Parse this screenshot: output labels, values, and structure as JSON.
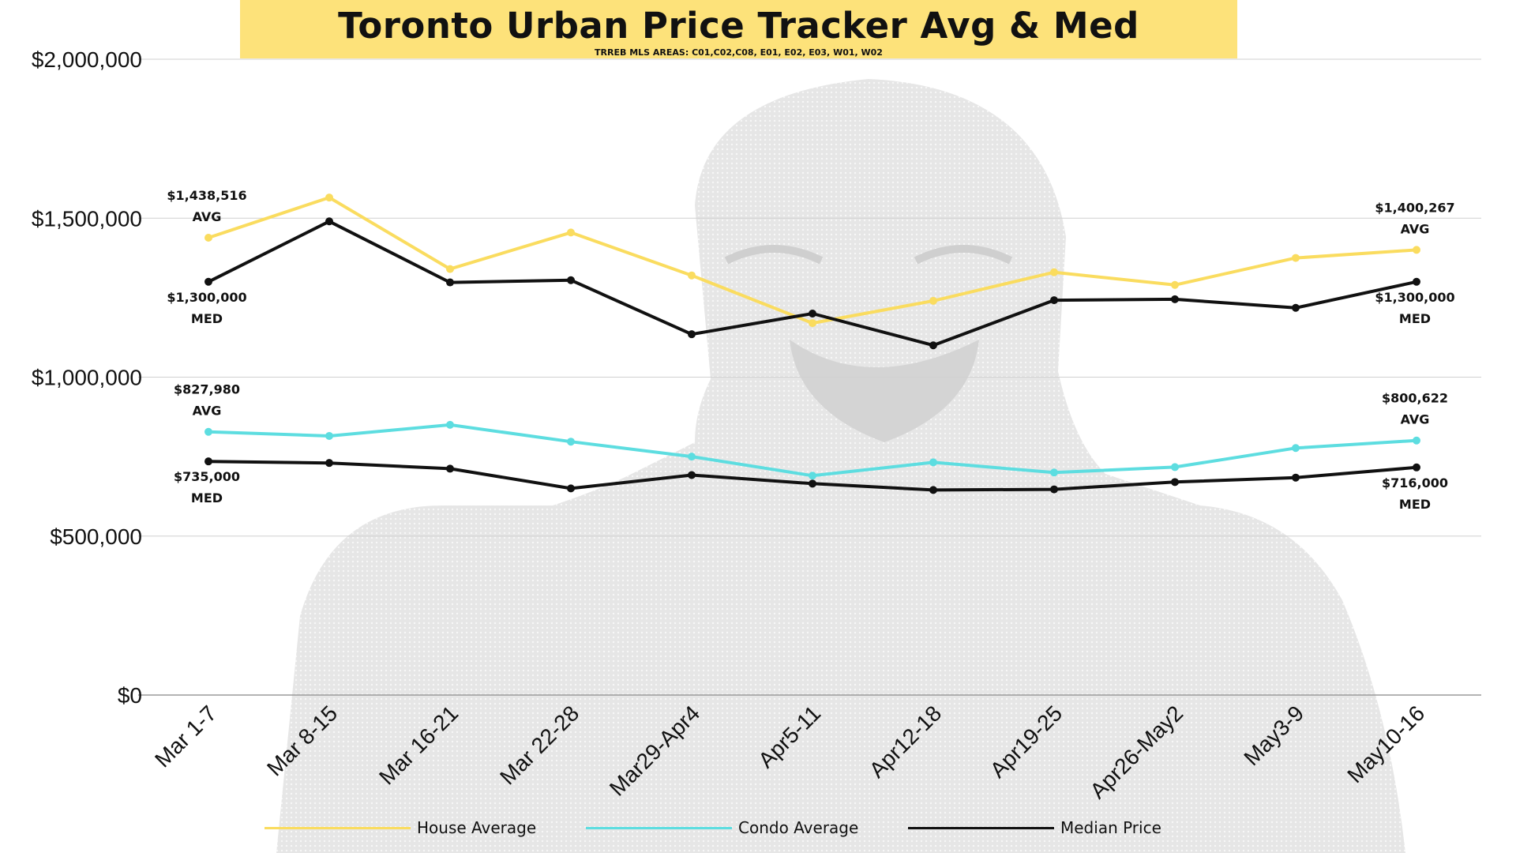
{
  "title": "Toronto Urban Price Tracker Avg & Med",
  "subtitle": "TRREB MLS AREAS: C01,C02,C08, E01, E02, E03, W01, W02",
  "chart_data": {
    "type": "line",
    "title": "Toronto Urban Price Tracker Avg & Med",
    "subtitle": "TRREB MLS AREAS: C01,C02,C08, E01, E02, E03, W01, W02",
    "xlabel": "",
    "ylabel": "",
    "categories": [
      "Mar 1-7",
      "Mar 8-15",
      "Mar 16-21",
      "Mar 22-28",
      "Mar29-Apr4",
      "Apr5-11",
      "Apr12-18",
      "Apr19-25",
      "Apr26-May2",
      "May3-9",
      "May10-16"
    ],
    "ylim": [
      0,
      2000000
    ],
    "yticks": [
      0,
      500000,
      1000000,
      1500000,
      2000000
    ],
    "ytick_labels": [
      "$0",
      "$500,000",
      "$1,000,000",
      "$1,500,000",
      "$2,000,000"
    ],
    "grid": true,
    "legend_position": "bottom",
    "series": [
      {
        "name": "House Average",
        "color": "#fadc5f",
        "values": [
          1438516,
          1565000,
          1340000,
          1455000,
          1320000,
          1170000,
          1240000,
          1330000,
          1290000,
          1375000,
          1400267
        ]
      },
      {
        "name": "Condo Average",
        "color": "#5ddde0",
        "values": [
          827980,
          815000,
          850000,
          797000,
          750000,
          690000,
          732000,
          700000,
          717000,
          777000,
          800622
        ]
      },
      {
        "name": "Median Price",
        "color": "#111111",
        "values": [
          1300000,
          1490000,
          1298000,
          1305000,
          1135000,
          1200000,
          1100000,
          1242000,
          1245000,
          1218000,
          1300000
        ]
      },
      {
        "name": "Median Price",
        "color": "#111111",
        "values": [
          735000,
          730000,
          712000,
          650000,
          692000,
          665000,
          645000,
          647000,
          670000,
          684000,
          716000
        ]
      }
    ],
    "annotations": [
      {
        "x": "Mar 1-7",
        "y": 1438516,
        "text": "$1,438,516",
        "sub": "AVG",
        "placement": "above"
      },
      {
        "x": "Mar 1-7",
        "y": 1300000,
        "text": "$1,300,000",
        "sub": "MED",
        "placement": "below"
      },
      {
        "x": "Mar 1-7",
        "y": 827980,
        "text": "$827,980",
        "sub": "AVG",
        "placement": "above"
      },
      {
        "x": "Mar 1-7",
        "y": 735000,
        "text": "$735,000",
        "sub": "MED",
        "placement": "below"
      },
      {
        "x": "May10-16",
        "y": 1400267,
        "text": "$1,400,267",
        "sub": "AVG",
        "placement": "above"
      },
      {
        "x": "May10-16",
        "y": 1300000,
        "text": "$1,300,000",
        "sub": "MED",
        "placement": "below"
      },
      {
        "x": "May10-16",
        "y": 800622,
        "text": "$800,622",
        "sub": "AVG",
        "placement": "above"
      },
      {
        "x": "May10-16",
        "y": 716000,
        "text": "$716,000",
        "sub": "MED",
        "placement": "below"
      }
    ]
  },
  "legend": [
    {
      "label": "House Average",
      "color": "#fadc5f"
    },
    {
      "label": "Condo Average",
      "color": "#5ddde0"
    },
    {
      "label": "Median Price",
      "color": "#111111"
    }
  ]
}
